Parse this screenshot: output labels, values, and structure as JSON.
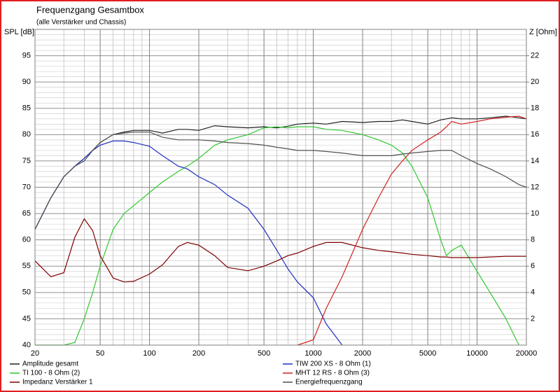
{
  "chart_data": {
    "type": "line",
    "title": "Frequenzgang Gesamtbox",
    "subtitle": "(alle Verstärker und Chassis)",
    "y_label": "SPL [dB]",
    "y2_label": "Z [Ohm]",
    "x_log": true,
    "grid": true,
    "legend": "bottom",
    "x": [
      20,
      25,
      30,
      35,
      40,
      45,
      50,
      60,
      70,
      80,
      100,
      120,
      150,
      170,
      200,
      250,
      300,
      400,
      500,
      600,
      700,
      800,
      1000,
      1200,
      1500,
      2000,
      2500,
      3000,
      3500,
      4000,
      5000,
      6000,
      6500,
      7000,
      8000,
      10000,
      12000,
      15000,
      18000,
      20000
    ],
    "xlim": [
      20,
      20000
    ],
    "xticks": [
      20,
      50,
      100,
      200,
      500,
      1000,
      2000,
      5000,
      10000,
      20000
    ],
    "xminorticks": [
      30,
      40,
      60,
      70,
      80,
      90,
      300,
      400,
      600,
      700,
      800,
      900,
      3000,
      4000,
      6000,
      7000,
      8000,
      9000
    ],
    "ylim": [
      40,
      100
    ],
    "yticks": [
      40,
      45,
      50,
      55,
      60,
      65,
      70,
      75,
      80,
      85,
      90,
      95
    ],
    "yminorticks": [
      41,
      42,
      43,
      44,
      46,
      47,
      48,
      49,
      51,
      52,
      53,
      54,
      56,
      57,
      58,
      59,
      61,
      62,
      63,
      64,
      66,
      67,
      68,
      69,
      71,
      72,
      73,
      74,
      76,
      77,
      78,
      79,
      81,
      82,
      83,
      84,
      86,
      87,
      88,
      89,
      91,
      92,
      93,
      94,
      96,
      97,
      98,
      99
    ],
    "y2lim": [
      0,
      24
    ],
    "y2ticks": [
      2,
      4,
      6,
      8,
      10,
      12,
      14,
      16,
      18,
      20,
      22
    ],
    "series": [
      {
        "name": "Amplitude gesamt",
        "color": "#202020",
        "values": [
          62,
          68,
          72,
          74,
          75.5,
          77,
          78.5,
          80,
          80.5,
          80.8,
          80.8,
          80.3,
          81,
          81,
          80.8,
          81.7,
          81.5,
          81.3,
          81.5,
          81.3,
          81.6,
          82,
          82.2,
          82,
          82.5,
          82.3,
          82.5,
          82.5,
          82.8,
          82.5,
          82,
          82.8,
          83,
          83.2,
          83,
          83,
          83.2,
          83.5,
          83.2,
          83
        ]
      },
      {
        "name": "TI 100 - 8 Ohm (2)",
        "color": "#30c830",
        "values": [
          40,
          40,
          40,
          40.5,
          45,
          50,
          55,
          62,
          65,
          66.5,
          69,
          71,
          73,
          74,
          75.5,
          78,
          79,
          80,
          81.3,
          81.5,
          81.3,
          81.5,
          81.5,
          81,
          80.8,
          80,
          79,
          78,
          76.5,
          74,
          68,
          60,
          57,
          58,
          59,
          54,
          50,
          45,
          40,
          null
        ]
      },
      {
        "name": "Impedanz Verstärker 1",
        "color": "#800000",
        "axis": "y2",
        "values": [
          6.4,
          5.2,
          5.5,
          8.2,
          9.6,
          8.7,
          6.8,
          5.1,
          4.8,
          4.85,
          5.4,
          6.1,
          7.5,
          7.8,
          7.6,
          6.8,
          5.9,
          5.65,
          6.0,
          6.4,
          6.8,
          7.0,
          7.5,
          7.8,
          7.8,
          7.4,
          7.2,
          7.1,
          7.0,
          6.9,
          6.8,
          6.7,
          6.7,
          6.65,
          6.65,
          6.65,
          6.7,
          6.75,
          6.75,
          6.75
        ]
      },
      {
        "name": "TIW 200 XS - 8 Ohm (1)",
        "color": "#2030c0",
        "values": [
          62,
          68,
          72,
          74,
          75.5,
          77,
          78,
          78.8,
          78.8,
          78.5,
          77.8,
          76,
          74,
          73.5,
          72,
          70.5,
          68.5,
          66,
          62,
          58,
          54.5,
          52,
          49,
          44,
          40,
          null,
          null,
          null,
          null,
          null,
          null,
          null,
          null,
          null,
          null,
          null,
          null,
          null,
          null,
          null
        ]
      },
      {
        "name": "MHT 12 RS - 8 Ohm (3)",
        "color": "#d02020",
        "values": [
          null,
          null,
          null,
          null,
          null,
          null,
          null,
          null,
          null,
          null,
          null,
          null,
          null,
          null,
          null,
          null,
          null,
          null,
          null,
          null,
          null,
          40,
          41,
          47,
          53,
          62,
          68,
          72.5,
          75,
          77,
          79,
          80.5,
          81.5,
          82.5,
          82,
          82.5,
          83,
          83.3,
          83.5,
          83
        ]
      },
      {
        "name": "Energiefrequenzgang",
        "color": "#505050",
        "values": [
          62,
          68,
          72,
          74,
          75,
          77,
          78.5,
          80,
          80.3,
          80.5,
          80.5,
          79.5,
          79,
          79,
          79,
          78.8,
          78.5,
          78.3,
          78,
          77.6,
          77.3,
          77,
          77,
          76.8,
          76.5,
          76,
          76,
          76,
          76.3,
          76.5,
          76.8,
          77,
          77,
          77,
          76,
          74.5,
          73.5,
          72,
          70.5,
          70
        ]
      }
    ]
  }
}
